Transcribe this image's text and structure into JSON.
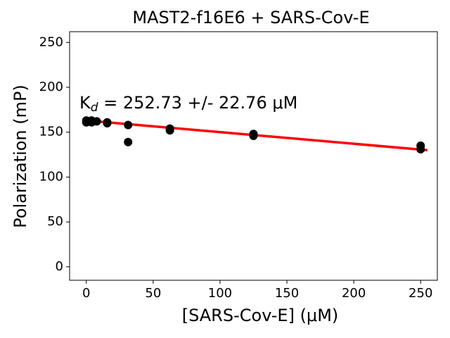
{
  "chart_data": {
    "type": "scatter",
    "title": "MAST2-f16E6 + SARS-Cov-E",
    "xlabel": "[SARS-Cov-E] (μM)",
    "ylabel": "Polarization (mP)",
    "annotation": {
      "text": "K",
      "subscript": "d",
      "rest": " = 252.73 +/- 22.76 μM"
    },
    "x": [
      0,
      0,
      3.9,
      3.9,
      7.8,
      15.6,
      15.6,
      31.25,
      31.25,
      62.5,
      62.5,
      125,
      125,
      250,
      250
    ],
    "values": [
      163,
      161,
      161,
      163,
      162,
      161,
      160,
      158,
      139,
      154,
      152,
      148,
      146,
      135,
      131
    ],
    "color": "#000000",
    "fit": {
      "x": [
        0,
        255
      ],
      "values": [
        163,
        130
      ],
      "color": "#ff0000"
    },
    "xlim": [
      -12.5,
      262.5
    ],
    "ylim": [
      -15,
      262
    ],
    "xticks": [
      0,
      50,
      100,
      150,
      200,
      250
    ],
    "yticks": [
      0,
      50,
      100,
      150,
      200,
      250
    ]
  }
}
